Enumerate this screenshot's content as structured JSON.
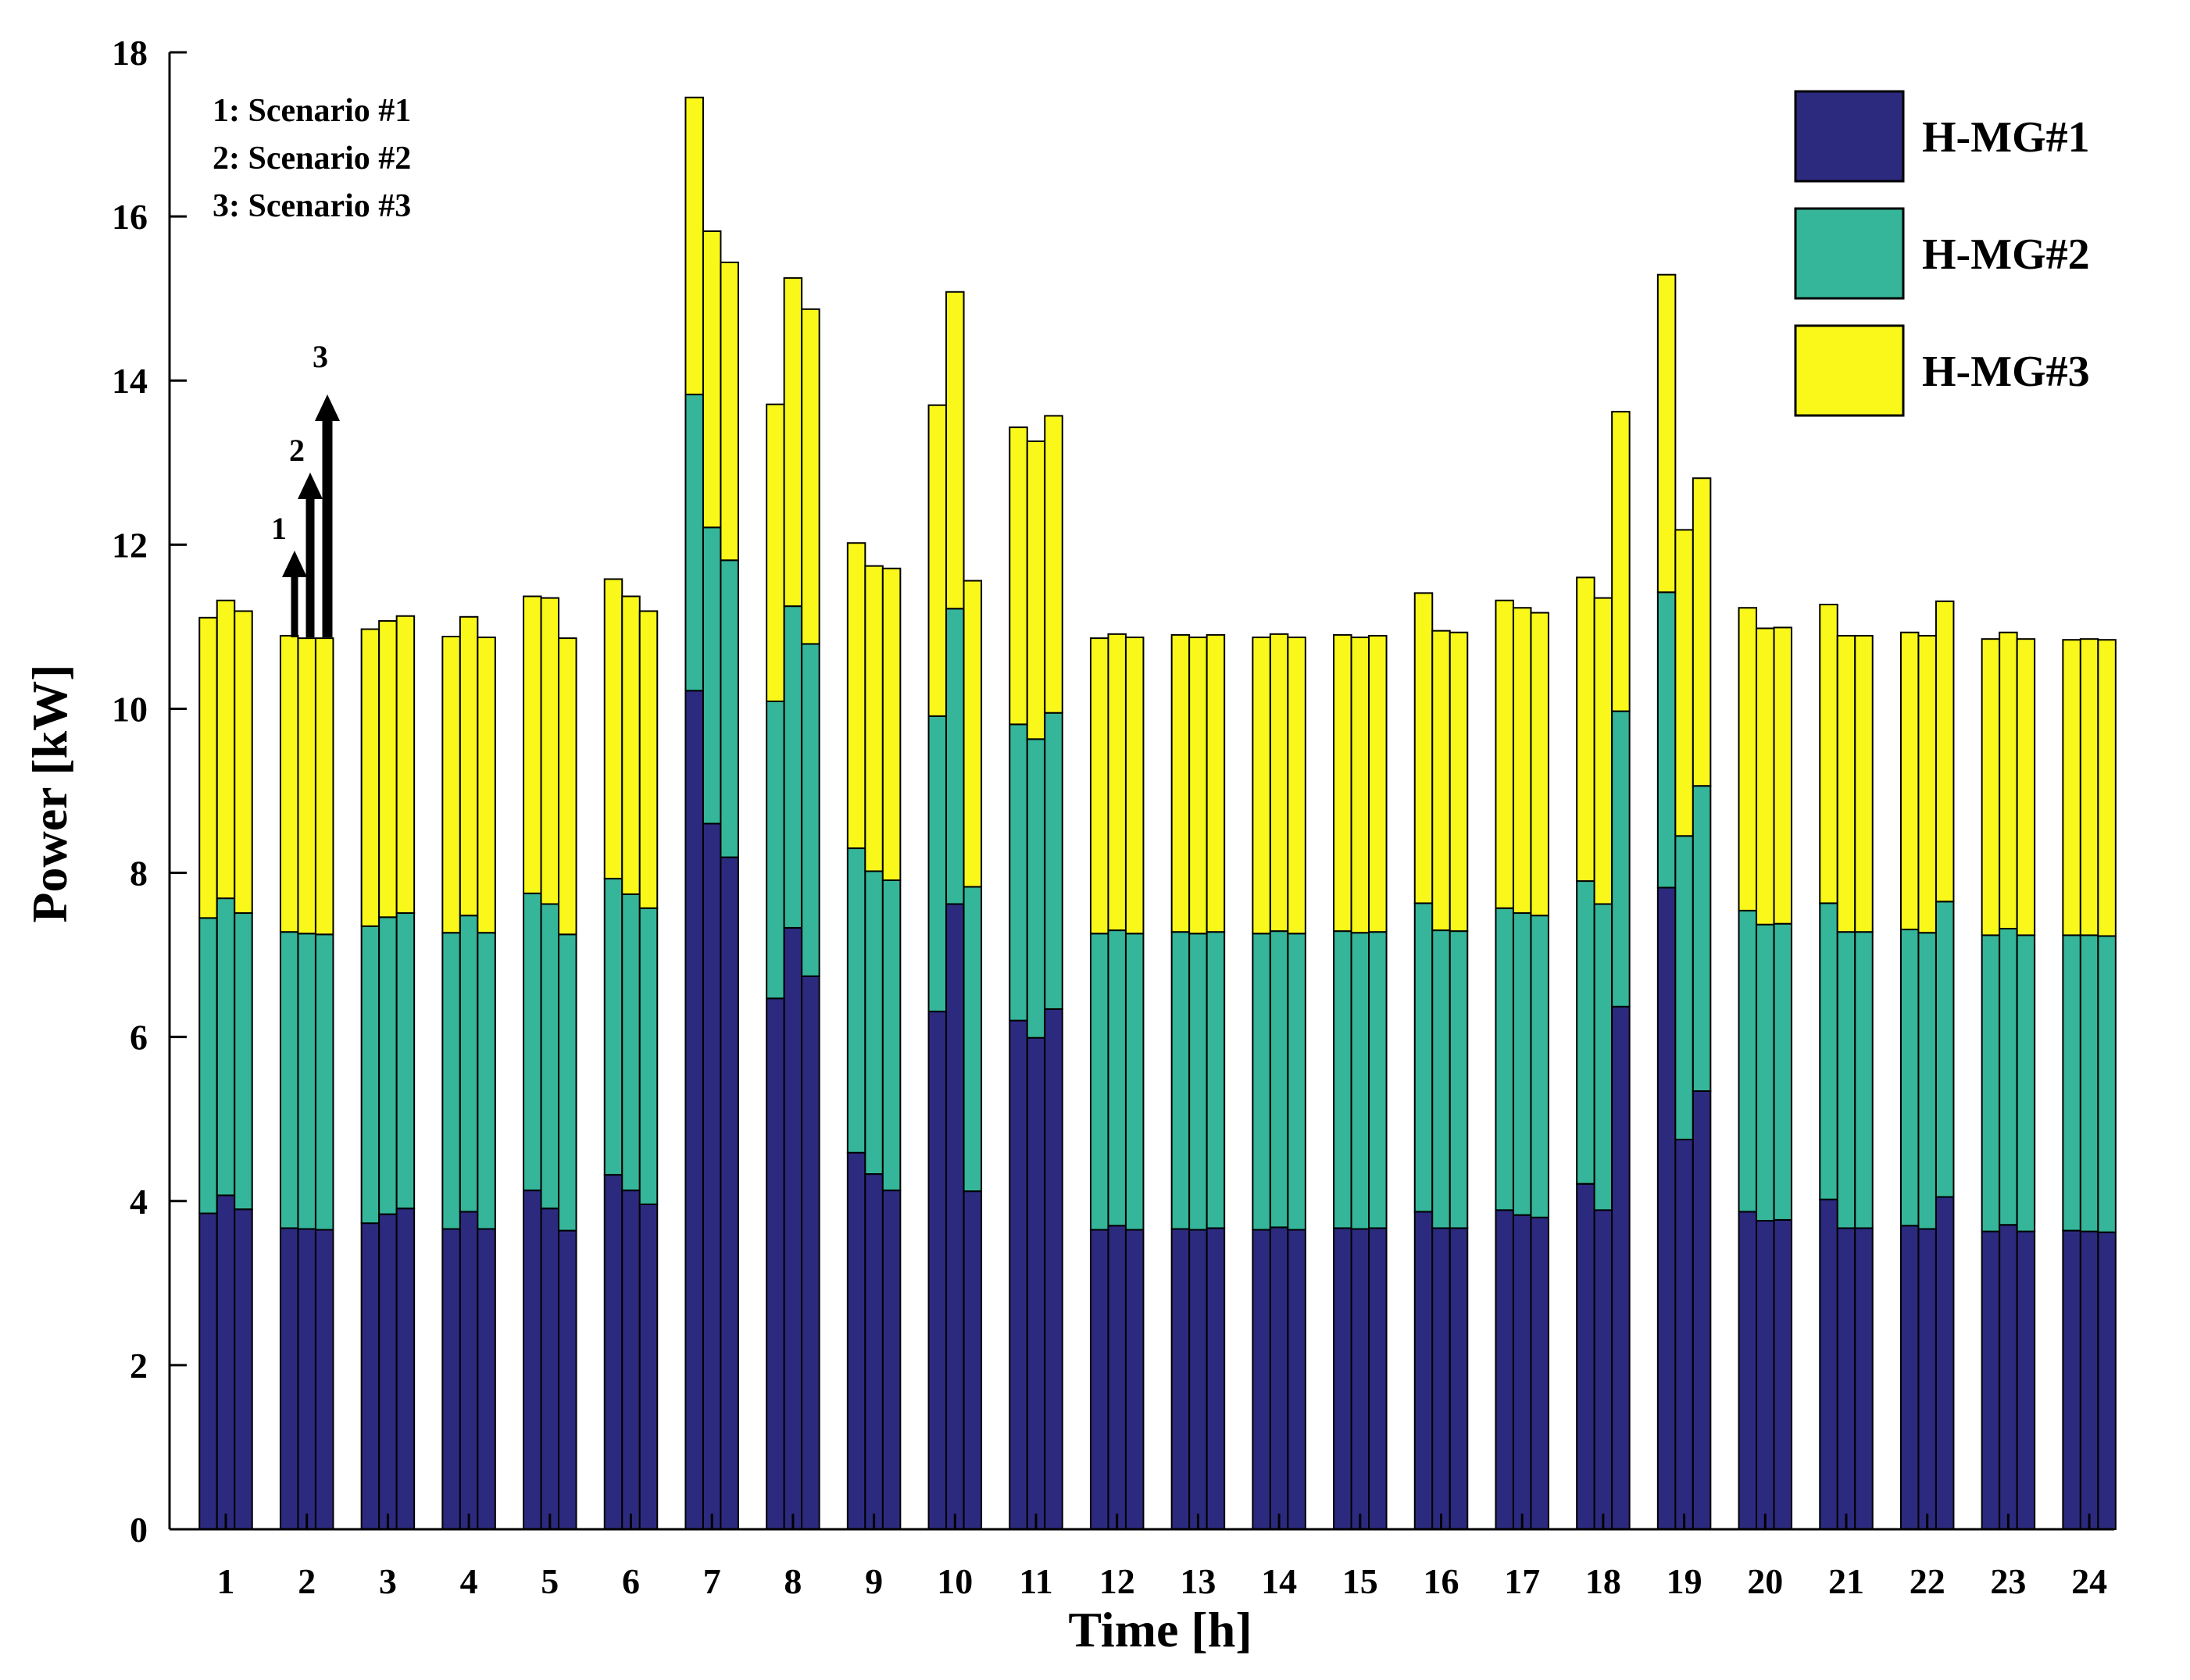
{
  "chart_data": {
    "type": "bar",
    "stacked": true,
    "grouped": true,
    "xlabel": "Time [h]",
    "ylabel": "Power [kW]",
    "ylim": [
      0,
      18
    ],
    "yticks": [
      0,
      2,
      4,
      6,
      8,
      10,
      12,
      14,
      16,
      18
    ],
    "categories": [
      "1",
      "2",
      "3",
      "4",
      "5",
      "6",
      "7",
      "8",
      "9",
      "10",
      "11",
      "12",
      "13",
      "14",
      "15",
      "16",
      "17",
      "18",
      "19",
      "20",
      "21",
      "22",
      "23",
      "24"
    ],
    "series": [
      {
        "name": "H-MG#1",
        "color": "#2c2a7e"
      },
      {
        "name": "H-MG#2",
        "color": "#35b599"
      },
      {
        "name": "H-MG#3",
        "color": "#f9f81a"
      }
    ],
    "scenarios": [
      {
        "scenario": 1,
        "label": "Scenario #1",
        "hmg1": [
          3.85,
          3.67,
          3.73,
          3.66,
          4.13,
          4.32,
          10.22,
          6.47,
          4.59,
          6.31,
          6.2,
          3.65,
          3.66,
          3.65,
          3.67,
          3.87,
          3.89,
          4.21,
          7.82,
          3.87,
          4.02,
          3.7,
          3.63,
          3.64
        ],
        "hmg2": [
          3.6,
          3.61,
          3.62,
          3.61,
          3.62,
          3.61,
          3.61,
          3.62,
          3.71,
          3.6,
          3.61,
          3.61,
          3.62,
          3.61,
          3.62,
          3.76,
          3.68,
          3.69,
          3.6,
          3.67,
          3.61,
          3.61,
          3.61,
          3.6
        ],
        "hmg3": [
          3.66,
          3.61,
          3.62,
          3.61,
          3.62,
          3.65,
          3.62,
          3.62,
          3.72,
          3.79,
          3.62,
          3.6,
          3.62,
          3.61,
          3.61,
          3.78,
          3.75,
          3.7,
          3.87,
          3.69,
          3.64,
          3.62,
          3.61,
          3.6
        ]
      },
      {
        "scenario": 2,
        "label": "Scenario #2",
        "hmg1": [
          4.07,
          3.66,
          3.84,
          3.87,
          3.91,
          4.13,
          8.6,
          7.33,
          4.33,
          7.62,
          5.99,
          3.7,
          3.65,
          3.68,
          3.66,
          3.67,
          3.83,
          3.89,
          4.75,
          3.76,
          3.67,
          3.66,
          3.71,
          3.63
        ],
        "hmg2": [
          3.62,
          3.6,
          3.62,
          3.61,
          3.71,
          3.61,
          3.61,
          3.92,
          3.69,
          3.6,
          3.64,
          3.6,
          3.61,
          3.61,
          3.61,
          3.63,
          3.68,
          3.73,
          3.7,
          3.61,
          3.61,
          3.61,
          3.61,
          3.61
        ],
        "hmg3": [
          3.63,
          3.6,
          3.61,
          3.64,
          3.73,
          3.63,
          3.61,
          4.0,
          3.72,
          3.86,
          3.63,
          3.61,
          3.61,
          3.62,
          3.6,
          3.65,
          3.72,
          3.73,
          3.73,
          3.61,
          3.61,
          3.62,
          3.61,
          3.61
        ]
      },
      {
        "scenario": 3,
        "label": "Scenario #3",
        "hmg1": [
          3.9,
          3.65,
          3.91,
          3.66,
          3.64,
          3.96,
          8.19,
          6.74,
          4.13,
          4.12,
          6.34,
          3.65,
          3.67,
          3.65,
          3.67,
          3.67,
          3.8,
          6.37,
          5.34,
          3.77,
          3.67,
          4.05,
          3.63,
          3.62
        ],
        "hmg2": [
          3.61,
          3.6,
          3.6,
          3.61,
          3.61,
          3.61,
          3.62,
          4.05,
          3.78,
          3.71,
          3.61,
          3.61,
          3.61,
          3.61,
          3.61,
          3.62,
          3.68,
          3.6,
          3.72,
          3.61,
          3.61,
          3.6,
          3.61,
          3.61
        ],
        "hmg3": [
          3.68,
          3.61,
          3.62,
          3.6,
          3.61,
          3.62,
          3.63,
          4.08,
          3.8,
          3.73,
          3.62,
          3.61,
          3.62,
          3.61,
          3.61,
          3.64,
          3.69,
          3.65,
          3.75,
          3.61,
          3.61,
          3.66,
          3.61,
          3.61
        ]
      }
    ],
    "legend": {
      "position": "top-right",
      "entries": [
        "H-MG#1",
        "H-MG#2",
        "H-MG#3"
      ]
    },
    "annotation": {
      "lines": [
        "1: Scenario #1",
        "2: Scenario #2",
        "3: Scenario #3"
      ],
      "arrow_labels": [
        "1",
        "2",
        "3"
      ]
    }
  }
}
